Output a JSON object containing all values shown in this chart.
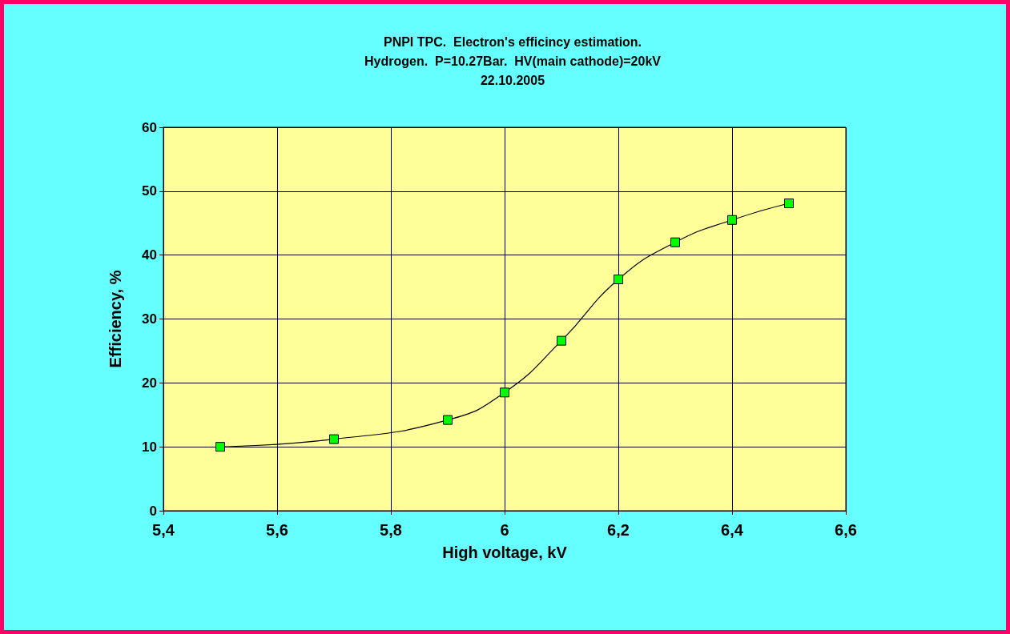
{
  "chart_data": {
    "type": "line",
    "title": "PNPI TPC.  Electron's efficincy estimation.\nHydrogen.  P=10.27Bar.  HV(main cathode)=20kV\n22.10.2005",
    "xlabel": "High voltage, kV",
    "ylabel": "Efficiency, %",
    "x": [
      5.5,
      5.7,
      5.9,
      6.0,
      6.1,
      6.2,
      6.3,
      6.4,
      6.5
    ],
    "series": [
      {
        "color": "#00ff00",
        "values": [
          10,
          11.2,
          14.2,
          18.5,
          26.6,
          36.2,
          42.0,
          45.5,
          48.1
        ]
      }
    ],
    "xlim": [
      5.4,
      6.6
    ],
    "xticks": [
      {
        "value": 5.4,
        "label": "5,4"
      },
      {
        "value": 5.6,
        "label": "5,6"
      },
      {
        "value": 5.8,
        "label": "5,8"
      },
      6,
      {
        "value": 6.2,
        "label": "6,2"
      },
      {
        "value": 6.4,
        "label": "6,4"
      },
      {
        "value": 6.6,
        "label": "6,6"
      }
    ],
    "ylim": [
      0,
      60
    ],
    "yticks": [
      0,
      10,
      20,
      30,
      40,
      50,
      60
    ],
    "grid": true,
    "marker": "square",
    "line_style": "solid"
  }
}
